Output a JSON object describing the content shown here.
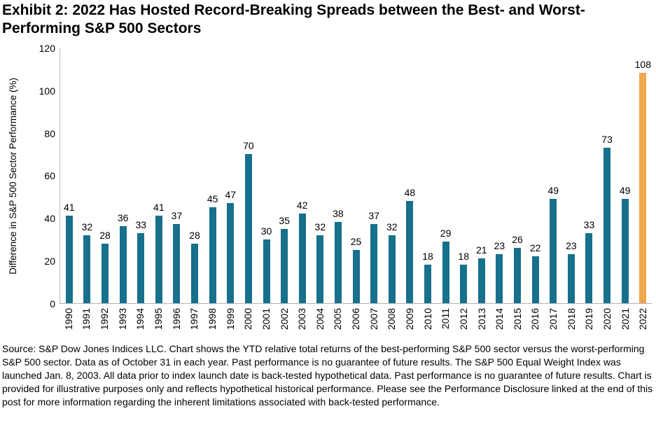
{
  "title": "Exhibit 2: 2022 Has Hosted Record-Breaking Spreads between the Best- and Worst-Performing S&P 500 Sectors",
  "chart_data": {
    "type": "bar",
    "title": "Exhibit 2: 2022 Has Hosted Record-Breaking Spreads between the Best- and Worst-Performing S&P 500 Sectors",
    "xlabel": "",
    "ylabel": "Difference in S&P 500 Sector Performance (%)",
    "ylim": [
      0,
      120
    ],
    "yticks": [
      0,
      20,
      40,
      60,
      80,
      100,
      120
    ],
    "grid": false,
    "legend": "none",
    "data_labels": true,
    "categories": [
      "1990",
      "1991",
      "1992",
      "1993",
      "1994",
      "1995",
      "1996",
      "1997",
      "1998",
      "1999",
      "2000",
      "2001",
      "2002",
      "2003",
      "2004",
      "2005",
      "2006",
      "2007",
      "2008",
      "2009",
      "2010",
      "2011",
      "2012",
      "2013",
      "2014",
      "2015",
      "2016",
      "2017",
      "2018",
      "2019",
      "2020",
      "2021",
      "2022"
    ],
    "values": [
      41,
      32,
      28,
      36,
      33,
      41,
      37,
      28,
      45,
      47,
      70,
      30,
      35,
      42,
      32,
      38,
      25,
      37,
      32,
      48,
      18,
      29,
      18,
      21,
      23,
      26,
      22,
      49,
      23,
      33,
      73,
      49,
      108
    ],
    "bar_color": "#17708C",
    "highlight_color": "#F0A74F",
    "highlight_category": "2022",
    "highlight_index": 32
  },
  "colors": {
    "axis_line": "#bdbdbd",
    "text": "#000000",
    "background": "#ffffff"
  },
  "footer": {
    "source_text": "Source: S&P Dow Jones Indices LLC. Chart shows the YTD relative total returns of the best-performing S&P 500 sector versus the worst-performing S&P 500 sector. Data as of October 31 in each year. Past performance is no guarantee of future results. The S&P 500 Equal Weight Index was launched Jan. 8, 2003. All data prior to index launch date is back-tested hypothetical data. Past performance is no guarantee of future results. Chart is provided for illustrative purposes only and reflects hypothetical historical performance. Please see the Performance Disclosure linked at the end of this post for more information regarding the inherent limitations associated with back-tested performance."
  }
}
